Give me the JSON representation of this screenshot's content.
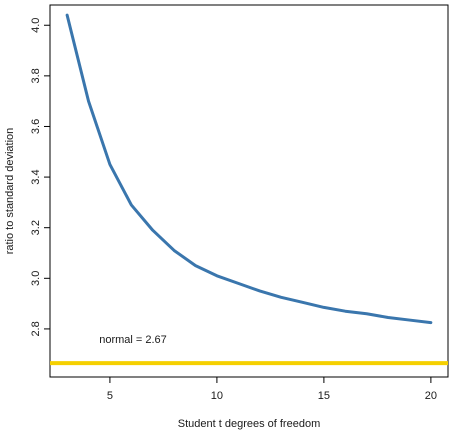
{
  "chart_data": {
    "type": "line",
    "xlabel": "Student t degrees of freedom",
    "ylabel": "ratio to standard deviation",
    "xlim": [
      2.2,
      20.8
    ],
    "ylim": [
      2.61,
      4.08
    ],
    "xticks": [
      5,
      10,
      15,
      20
    ],
    "yticks": [
      2.8,
      3.0,
      3.2,
      3.4,
      3.6,
      3.8,
      4.0
    ],
    "grid": false,
    "series": [
      {
        "x": [
          3,
          4,
          5,
          6,
          7,
          8,
          9,
          10,
          11,
          12,
          13,
          14,
          15,
          16,
          17,
          18,
          19,
          20
        ],
        "values": [
          4.04,
          3.7,
          3.45,
          3.29,
          3.19,
          3.11,
          3.05,
          3.01,
          2.98,
          2.95,
          2.925,
          2.905,
          2.885,
          2.87,
          2.86,
          2.845,
          2.835,
          2.825
        ],
        "color": "#3a76ad"
      }
    ],
    "reference_line": {
      "y": 2.665,
      "color": "#f5d000",
      "label": "normal = 2.67"
    }
  }
}
